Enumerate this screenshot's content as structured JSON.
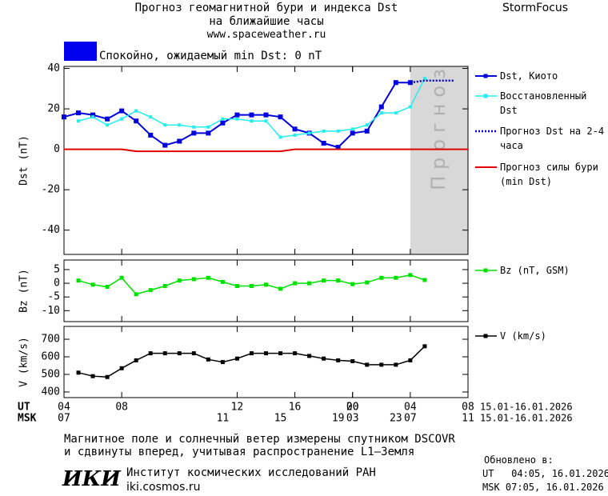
{
  "header": {
    "title": "Прогноз геомагнитной бури и индекса Dst",
    "subtitle": "на ближайшие часы",
    "url": "www.spaceweather.ru",
    "brand": "StormFocus",
    "status": "Спокойно, ожидаемый min Dst: 0 nT",
    "status_color": "#0000ee"
  },
  "chart_data": [
    {
      "type": "line",
      "ylabel": "Dst (nT)",
      "xlim": [
        0,
        28
      ],
      "ylim": [
        -52,
        41
      ],
      "yticks": [
        40,
        20,
        0,
        -20,
        -40
      ],
      "shaded_region": {
        "xlim": [
          24,
          28
        ],
        "label": "Прогноз",
        "color": "#d8d8d8"
      },
      "series": [
        {
          "name": "Dst, Киото",
          "color": "#0000dd",
          "marker": "square",
          "marker_size": 6,
          "width": 2,
          "x": [
            0,
            1,
            2,
            3,
            4,
            5,
            6,
            7,
            8,
            9,
            10,
            11,
            12,
            13,
            14,
            15,
            16,
            17,
            18,
            19,
            20,
            21,
            22,
            23,
            24
          ],
          "values": [
            16,
            18,
            17,
            15,
            19,
            14,
            7,
            2,
            4,
            8,
            8,
            13,
            17,
            17,
            17,
            16,
            10,
            8,
            3,
            1,
            8,
            9,
            21,
            33,
            33
          ]
        },
        {
          "name": "Восстановленный Dst",
          "color": "#22eeee",
          "marker": "square",
          "marker_size": 4,
          "width": 1.5,
          "x": [
            1,
            2,
            3,
            4,
            5,
            6,
            7,
            8,
            9,
            10,
            11,
            12,
            13,
            14,
            15,
            16,
            17,
            18,
            19,
            20,
            21,
            22,
            23,
            24,
            25
          ],
          "values": [
            14,
            16,
            12,
            15,
            19,
            16,
            12,
            12,
            11,
            11,
            15,
            15,
            14,
            14,
            6,
            7,
            8,
            9,
            9,
            10,
            12,
            18,
            18,
            21,
            35
          ]
        },
        {
          "name": "Прогноз Dst на 2-4 часа",
          "color": "#0000dd",
          "dash": "dotted",
          "width": 2.5,
          "x": [
            24,
            25,
            26,
            27
          ],
          "values": [
            33,
            34,
            34,
            34
          ]
        },
        {
          "name": "Прогноз силы бури (min Dst)",
          "color": "#e00000",
          "width": 2,
          "x": [
            0,
            4,
            5,
            15,
            16,
            28
          ],
          "values": [
            0,
            0,
            -1,
            -1,
            0,
            0
          ]
        }
      ]
    },
    {
      "type": "line",
      "ylabel": "Bz (nT)",
      "xlim": [
        0,
        28
      ],
      "ylim": [
        -14,
        8.5
      ],
      "yticks": [
        5,
        0,
        -5,
        -10
      ],
      "series": [
        {
          "name": "Bz (nT, GSM)",
          "color": "#00e000",
          "marker": "square",
          "marker_size": 5,
          "width": 1.5,
          "x": [
            1,
            2,
            3,
            4,
            5,
            6,
            7,
            8,
            9,
            10,
            11,
            12,
            13,
            14,
            15,
            16,
            17,
            18,
            19,
            20,
            21,
            22,
            23,
            24,
            25
          ],
          "values": [
            1,
            -0.5,
            -1.3,
            2,
            -4,
            -2.5,
            -1,
            1,
            1.5,
            2,
            0.5,
            -1,
            -1,
            -0.5,
            -2,
            0,
            0,
            1,
            1,
            -0.3,
            0.3,
            2,
            2,
            3,
            1.2
          ]
        }
      ]
    },
    {
      "type": "line",
      "ylabel": "V (km/s)",
      "xlim": [
        0,
        28
      ],
      "ylim": [
        368,
        773
      ],
      "yticks": [
        700,
        600,
        500,
        400
      ],
      "xticks": [
        {
          "value": 0,
          "label": "04"
        },
        {
          "value": 4,
          "label": "08"
        },
        12,
        16,
        20,
        {
          "value": 20,
          "label": "00"
        },
        {
          "value": 24,
          "label": "04"
        },
        {
          "value": 28,
          "label": "08"
        }
      ],
      "xticks2": [
        {
          "value": 0,
          "label": "07"
        },
        11,
        15,
        19,
        23,
        {
          "value": 20,
          "label": "03"
        },
        {
          "value": 24,
          "label": "07"
        },
        {
          "value": 28,
          "label": "11"
        }
      ],
      "xtick_rows": [
        "UT",
        "MSK"
      ],
      "xtick_notes": [
        "15.01-16.01.2026",
        "15.01-16.01.2026"
      ],
      "series": [
        {
          "name": "V (km/s)",
          "color": "#000000",
          "marker": "square",
          "marker_size": 5,
          "width": 1.5,
          "x": [
            1,
            2,
            3,
            4,
            5,
            6,
            7,
            8,
            9,
            10,
            11,
            12,
            13,
            14,
            15,
            16,
            17,
            18,
            19,
            20,
            21,
            22,
            23,
            24,
            25
          ],
          "values": [
            510,
            490,
            485,
            535,
            580,
            620,
            620,
            620,
            620,
            585,
            570,
            590,
            620,
            620,
            620,
            620,
            605,
            590,
            580,
            575,
            555,
            555,
            555,
            580,
            660
          ]
        }
      ]
    }
  ],
  "footer": {
    "note1": "Магнитное поле и солнечный ветер измерены спутником DSCOVR",
    "note2": "и сдвинуты вперед, учитывая распространение L1–Земля",
    "logo": "ИКИ",
    "institute": "Институт космических исследований РАН",
    "site": "iki.cosmos.ru",
    "updated": "Обновлено в:",
    "updated_ut": "UT   04:05, 16.01.2026",
    "updated_msk": "MSK 07:05, 16.01.2026"
  }
}
